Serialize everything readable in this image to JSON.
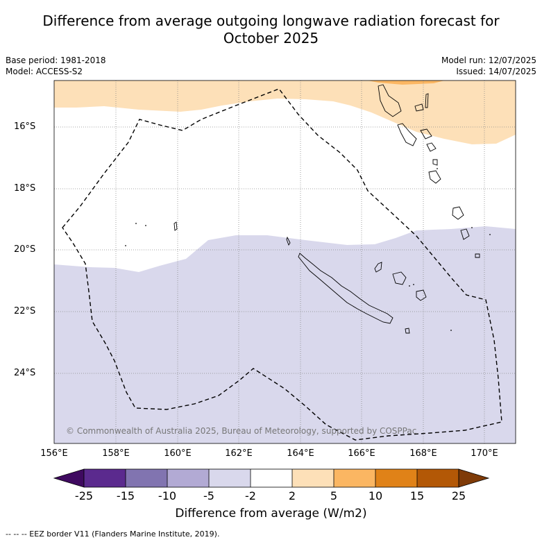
{
  "title_line1": "Difference from average outgoing longwave radiation forecast for",
  "title_line2": "October 2025",
  "base_period": "Base period: 1981-2018",
  "model": "Model: ACCESS-S2",
  "model_run": "Model run: 12/07/2025",
  "issued": "Issued: 14/07/2025",
  "copyright": "© Commonwealth of Australia 2025, Bureau of Meteorology, supported by COSPPac",
  "lat_labels": [
    "16°S",
    "18°S",
    "20°S",
    "22°S",
    "24°S"
  ],
  "lon_labels": [
    "156°E",
    "158°E",
    "160°E",
    "162°E",
    "164°E",
    "166°E",
    "168°E",
    "170°E"
  ],
  "colorbar": {
    "ticks": [
      "-25",
      "-15",
      "-10",
      "-5",
      "-2",
      "2",
      "5",
      "10",
      "15",
      "25"
    ],
    "colors": [
      "#3f0a60",
      "#5b2a8e",
      "#8174b0",
      "#b2aad4",
      "#d9d8ec",
      "#ffffff",
      "#fde0b8",
      "#fbb662",
      "#e08218",
      "#b35806",
      "#7f3b08"
    ],
    "title": "Difference from average (W/m2)"
  },
  "footer": "--  --  -- EEZ border V11 (Flanders Marine Institute, 2019)."
}
